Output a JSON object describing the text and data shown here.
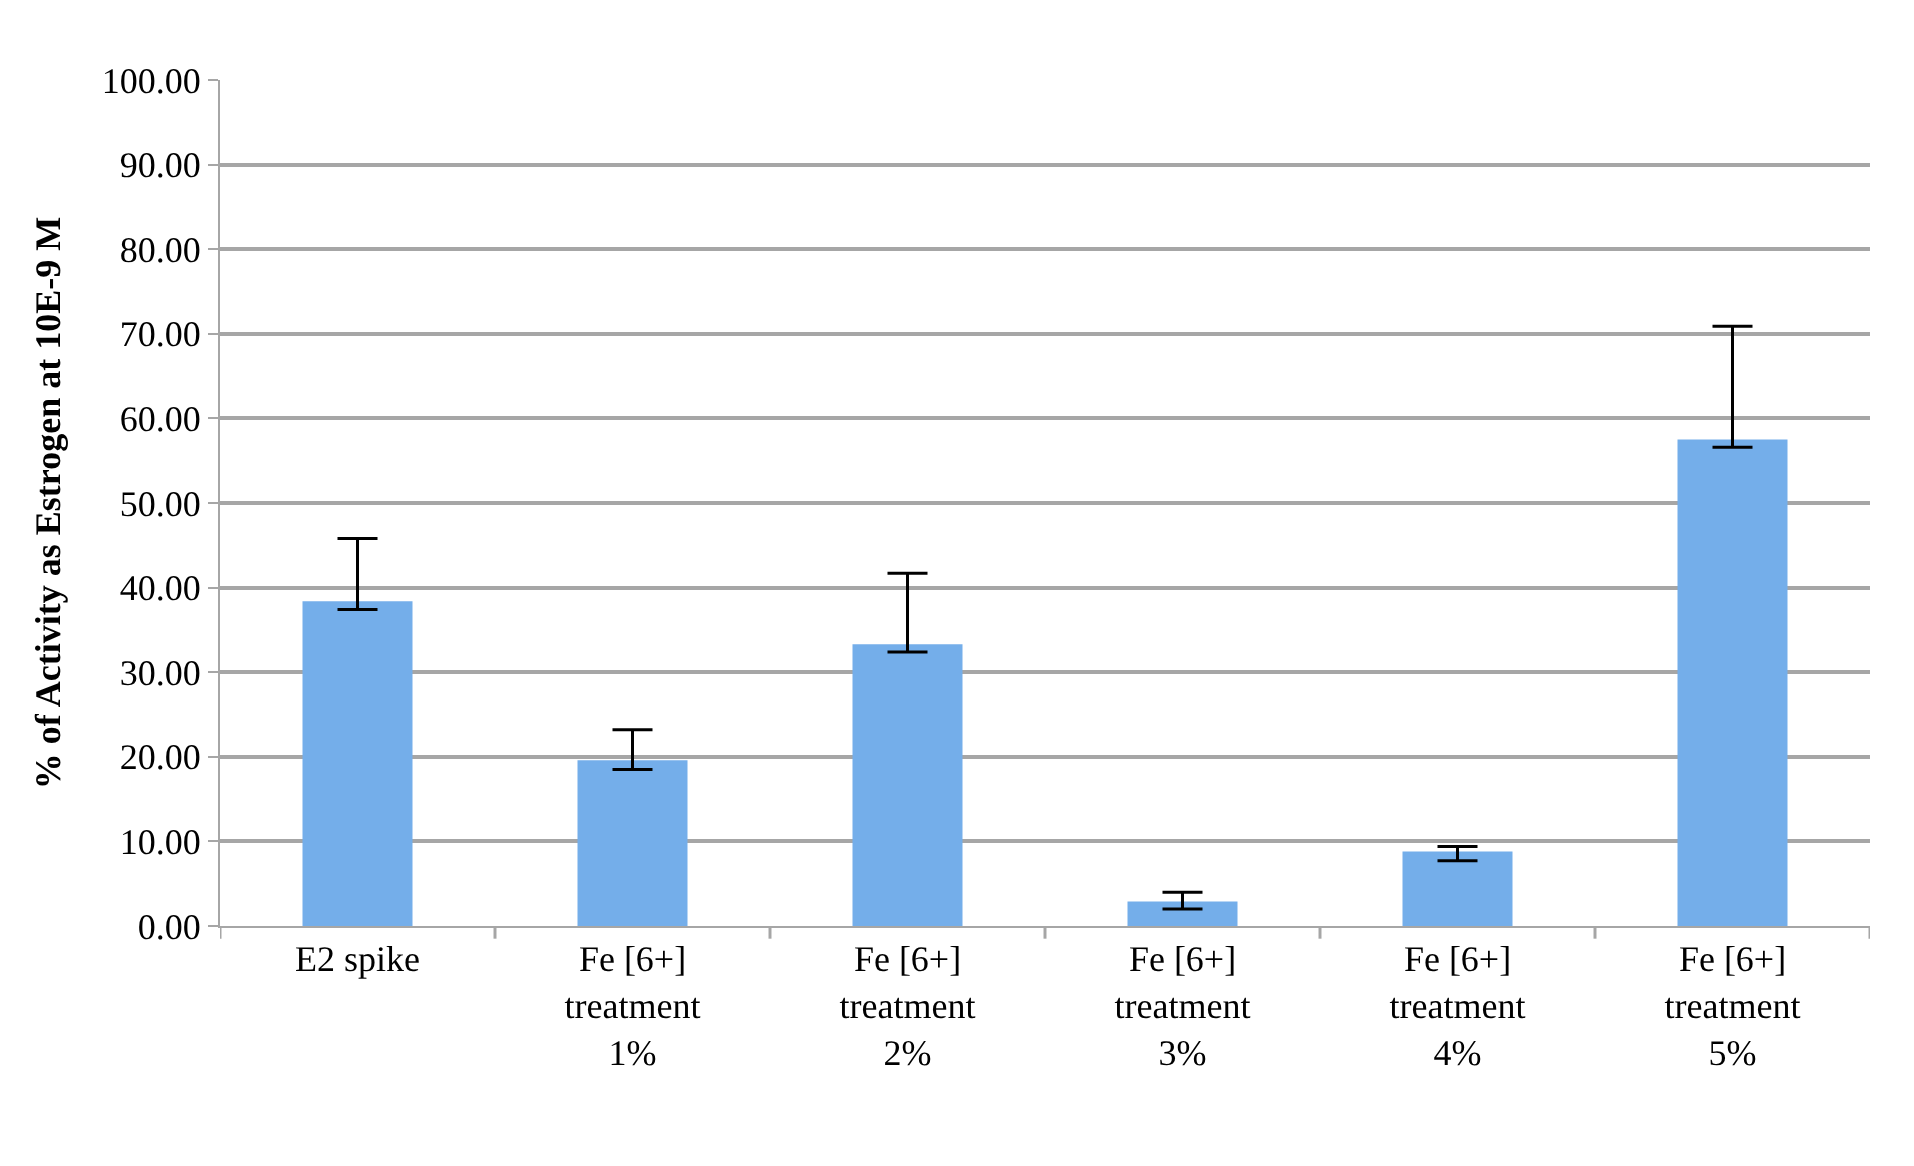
{
  "chart_data": {
    "type": "bar",
    "ylabel": "% of Activity as Estrogen at 10E-9 M",
    "categories": [
      "E2 spike",
      "Fe [6+]\ntreatment\n1%",
      "Fe [6+]\ntreatment\n2%",
      "Fe [6+]\ntreatment\n3%",
      "Fe [6+]\ntreatment\n4%",
      "Fe [6+]\ntreatment\n5%"
    ],
    "values": [
      38.4,
      19.6,
      33.3,
      2.9,
      8.8,
      57.5
    ],
    "errors": [
      [
        37.4,
        45.8
      ],
      [
        18.5,
        23.2
      ],
      [
        32.4,
        41.7
      ],
      [
        2.0,
        4.0
      ],
      [
        7.7,
        9.4
      ],
      [
        56.6,
        70.9
      ]
    ],
    "color": "#74aeea",
    "ylim": [
      0,
      100
    ],
    "yticks": [
      {
        "value": 0,
        "label": "0.00"
      },
      {
        "value": 10,
        "label": "10.00"
      },
      {
        "value": 20,
        "label": "20.00"
      },
      {
        "value": 30,
        "label": "30.00"
      },
      {
        "value": 40,
        "label": "40.00"
      },
      {
        "value": 50,
        "label": "50.00"
      },
      {
        "value": 60,
        "label": "60.00"
      },
      {
        "value": 70,
        "label": "70.00"
      },
      {
        "value": 80,
        "label": "80.00"
      },
      {
        "value": 90,
        "label": "90.00"
      },
      {
        "value": 100,
        "label": "100.00"
      }
    ],
    "grid": "y"
  }
}
